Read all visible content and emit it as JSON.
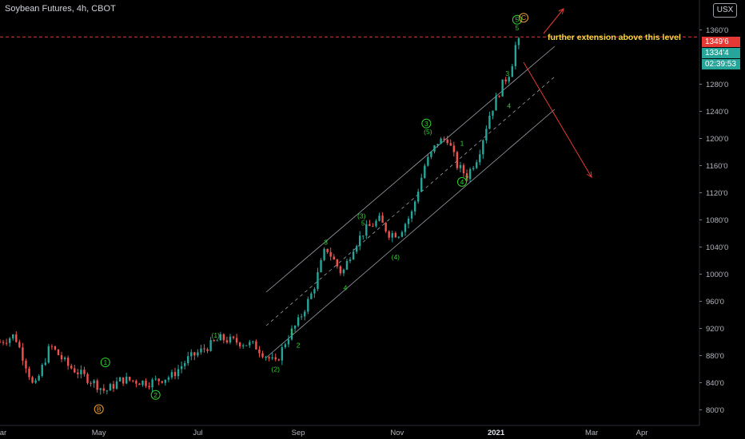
{
  "header": {
    "symbol_text": "Soybean Futures, 4h, CBOT",
    "currency_label": "USX"
  },
  "price_badges": {
    "high_price": "1349'6",
    "last_price": "1334'4",
    "countdown": "02:39:53"
  },
  "colors": {
    "background": "#000000",
    "up_candle": "#26a69a",
    "down_candle": "#ef5350",
    "wave_label": "#2fd12f",
    "wave_b_c": "#f0a030",
    "annotation_text": "#f5d742",
    "arrow": "#e53935",
    "dashed_level": "#e53935",
    "channel": "#9aa0aa"
  },
  "chart_data": {
    "type": "candlestick",
    "title": "",
    "xlabel": "",
    "ylabel": "",
    "x_ticks": [
      "Mar",
      "May",
      "Jul",
      "Sep",
      "Nov",
      "2021",
      "Mar",
      "Apr"
    ],
    "y_ticks": [
      "800'0",
      "840'0",
      "880'0",
      "920'0",
      "960'0",
      "1000'0",
      "1040'0",
      "1080'0",
      "1120'0",
      "1160'0",
      "1200'0",
      "1240'0",
      "1280'0",
      "1360'0"
    ],
    "y_range": [
      777,
      1390
    ],
    "x_range": [
      "2020-03-01",
      "2021-05-05"
    ],
    "grid": false,
    "close_path": [
      [
        "2020-03-01",
        900
      ],
      [
        "2020-03-10",
        910
      ],
      [
        "2020-03-18",
        860
      ],
      [
        "2020-03-22",
        830
      ],
      [
        "2020-04-01",
        895
      ],
      [
        "2020-04-12",
        865
      ],
      [
        "2020-04-28",
        840
      ],
      [
        "2020-05-05",
        827
      ],
      [
        "2020-05-15",
        845
      ],
      [
        "2020-06-01",
        840
      ],
      [
        "2020-06-15",
        850
      ],
      [
        "2020-06-25",
        875
      ],
      [
        "2020-07-05",
        890
      ],
      [
        "2020-07-15",
        905
      ],
      [
        "2020-07-30",
        898
      ],
      [
        "2020-08-05",
        895
      ],
      [
        "2020-08-12",
        880
      ],
      [
        "2020-08-18",
        868
      ],
      [
        "2020-08-25",
        905
      ],
      [
        "2020-09-01",
        930
      ],
      [
        "2020-09-10",
        975
      ],
      [
        "2020-09-18",
        1040
      ],
      [
        "2020-09-28",
        1000
      ],
      [
        "2020-10-05",
        1040
      ],
      [
        "2020-10-12",
        1065
      ],
      [
        "2020-10-21",
        1080
      ],
      [
        "2020-10-27",
        1060
      ],
      [
        "2020-11-02",
        1060
      ],
      [
        "2020-11-10",
        1090
      ],
      [
        "2020-11-18",
        1160
      ],
      [
        "2020-11-26",
        1195
      ],
      [
        "2020-12-02",
        1200
      ],
      [
        "2020-12-08",
        1160
      ],
      [
        "2020-12-14",
        1145
      ],
      [
        "2020-12-21",
        1175
      ],
      [
        "2020-12-28",
        1235
      ],
      [
        "2021-01-05",
        1280
      ],
      [
        "2021-01-10",
        1300
      ],
      [
        "2021-01-14",
        1349
      ],
      [
        "2021-01-16",
        1334
      ]
    ],
    "wave_labels": [
      {
        "text": "B",
        "date": "2020-05-01",
        "price": 801,
        "style": "circle-orange"
      },
      {
        "text": "1",
        "date": "2020-05-05",
        "price": 870,
        "style": "circle-green"
      },
      {
        "text": "2",
        "date": "2020-06-05",
        "price": 822,
        "style": "circle-green"
      },
      {
        "text": "(1)",
        "date": "2020-07-12",
        "price": 910,
        "style": "plain-green"
      },
      {
        "text": "(2)",
        "date": "2020-08-18",
        "price": 860,
        "style": "plain-green"
      },
      {
        "text": "1",
        "date": "2020-08-28",
        "price": 915,
        "style": "plain-green"
      },
      {
        "text": "2",
        "date": "2020-09-01",
        "price": 895,
        "style": "plain-green"
      },
      {
        "text": "3",
        "date": "2020-09-18",
        "price": 1047,
        "style": "plain-green"
      },
      {
        "text": "4",
        "date": "2020-09-30",
        "price": 980,
        "style": "plain-green"
      },
      {
        "text": "(3)",
        "date": "2020-10-10",
        "price": 1086,
        "style": "plain-green"
      },
      {
        "text": "5",
        "date": "2020-10-11",
        "price": 1075,
        "style": "plain-green"
      },
      {
        "text": "(4)",
        "date": "2020-10-31",
        "price": 1025,
        "style": "plain-green"
      },
      {
        "text": "3",
        "date": "2020-11-19",
        "price": 1222,
        "style": "circle-green"
      },
      {
        "text": "(5)",
        "date": "2020-11-20",
        "price": 1210,
        "style": "plain-green"
      },
      {
        "text": "1",
        "date": "2020-12-11",
        "price": 1193,
        "style": "plain-green"
      },
      {
        "text": "4",
        "date": "2020-12-11",
        "price": 1136,
        "style": "circle-green"
      },
      {
        "text": "2",
        "date": "2020-12-14",
        "price": 1142,
        "style": "plain-green"
      },
      {
        "text": "3",
        "date": "2021-01-08",
        "price": 1296,
        "style": "plain-green"
      },
      {
        "text": "4",
        "date": "2021-01-09",
        "price": 1248,
        "style": "plain-green"
      },
      {
        "text": "5",
        "date": "2021-01-14",
        "price": 1375,
        "style": "circle-green"
      },
      {
        "text": "C",
        "date": "2021-01-18",
        "price": 1378,
        "style": "circle-orange"
      },
      {
        "text": "5",
        "date": "2021-01-14",
        "price": 1363,
        "style": "plain-green"
      }
    ],
    "annotation": "further extension above this level",
    "resistance_level": 1349.75
  }
}
